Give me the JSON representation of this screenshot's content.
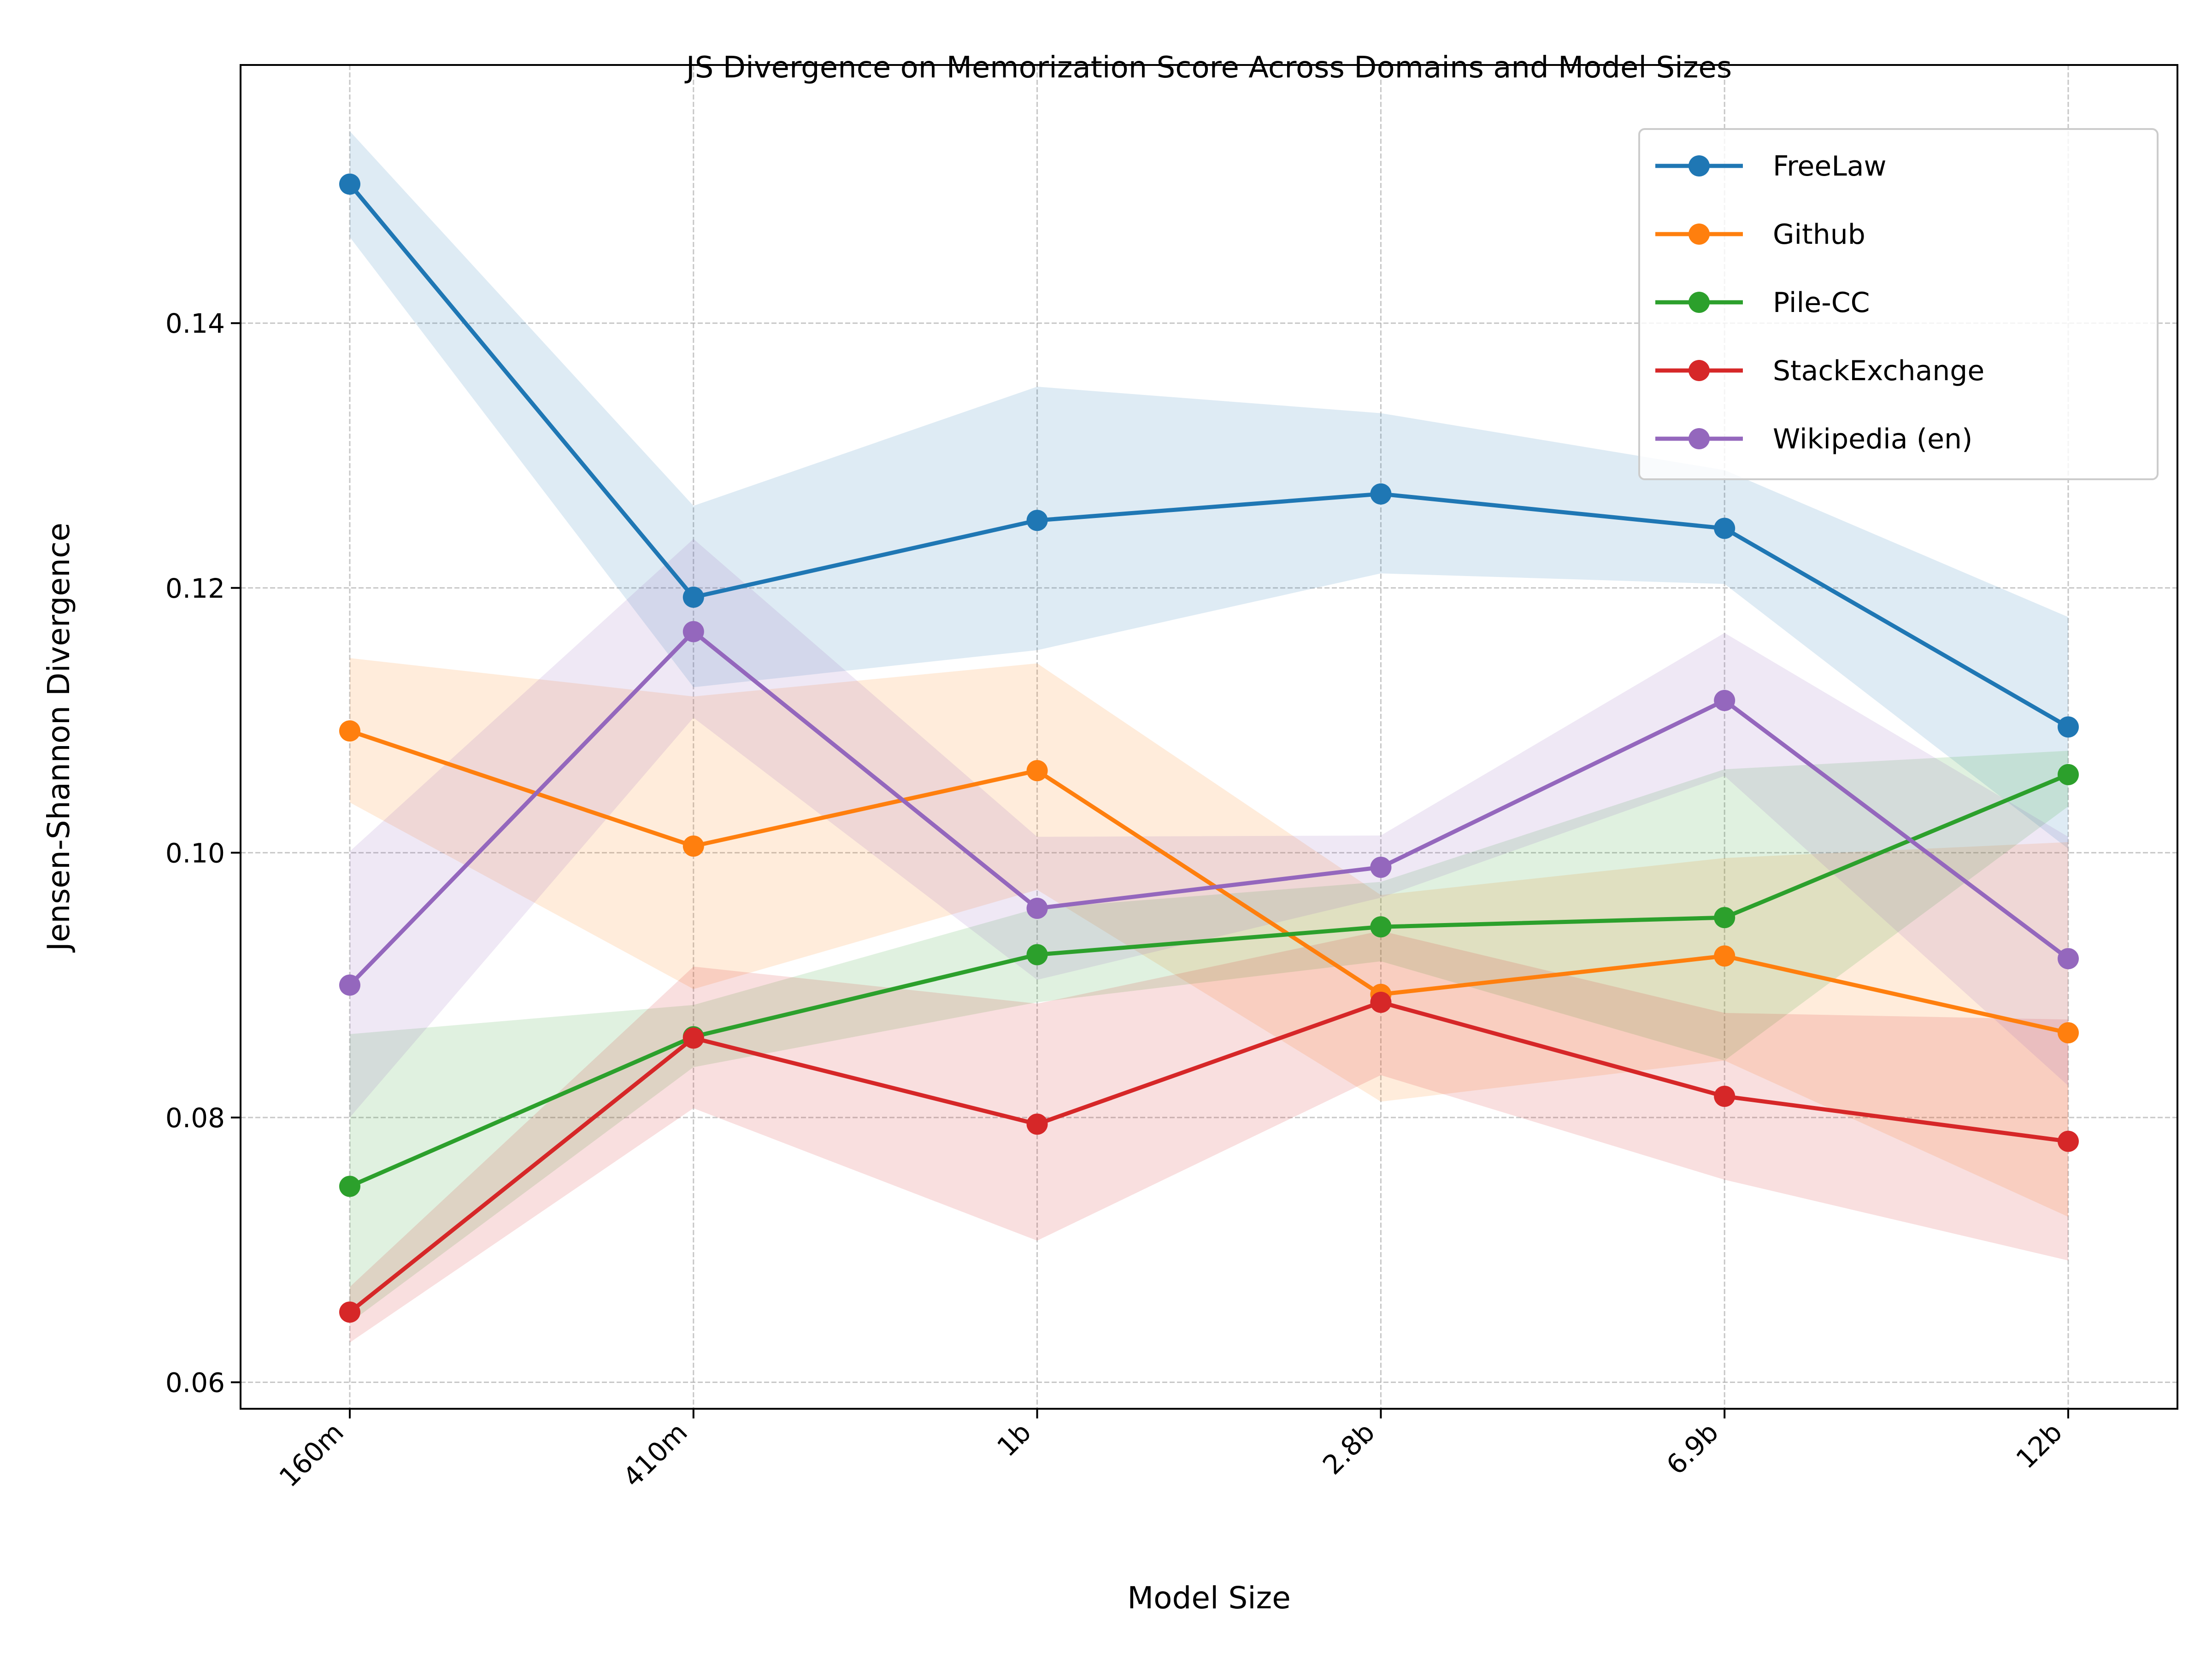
{
  "chart_data": {
    "type": "line",
    "title": "JS Divergence on Memorization Score Across Domains and Model Sizes",
    "xlabel": "Model Size",
    "ylabel": "Jensen-Shannon Divergence",
    "categories": [
      "160m",
      "410m",
      "1b",
      "2.8b",
      "6.9b",
      "12b"
    ],
    "ylim": [
      0.058,
      0.1595
    ],
    "yticks": [
      0.06,
      0.08,
      0.1,
      0.12,
      0.14
    ],
    "ytick_labels": [
      "0.06",
      "0.08",
      "0.10",
      "0.12",
      "0.14"
    ],
    "grid": true,
    "legend_position": "top-right",
    "series": [
      {
        "name": "FreeLaw",
        "color": "#1f77b4",
        "values": [
          0.1505,
          0.1193,
          0.1251,
          0.1271,
          0.1245,
          0.1095
        ],
        "lower": [
          0.1465,
          0.1125,
          0.1153,
          0.1211,
          0.1203,
          0.1003
        ],
        "upper": [
          0.1545,
          0.1262,
          0.1352,
          0.1332,
          0.1289,
          0.1178
        ]
      },
      {
        "name": "Github",
        "color": "#ff7f0e",
        "values": [
          0.1092,
          0.1005,
          0.1062,
          0.0893,
          0.0922,
          0.0864
        ],
        "lower": [
          0.1038,
          0.0897,
          0.0972,
          0.0812,
          0.0843,
          0.0725
        ],
        "upper": [
          0.1147,
          0.1118,
          0.1143,
          0.0968,
          0.0996,
          0.1008
        ]
      },
      {
        "name": "Pile-CC",
        "color": "#2ca02c",
        "values": [
          0.0748,
          0.0861,
          0.0923,
          0.0944,
          0.0951,
          0.1059
        ],
        "lower": [
          0.0645,
          0.0838,
          0.0887,
          0.0918,
          0.0843,
          0.1035
        ],
        "upper": [
          0.0863,
          0.0885,
          0.0958,
          0.0978,
          0.1063,
          0.1077
        ]
      },
      {
        "name": "StackExchange",
        "color": "#d62728",
        "values": [
          0.0653,
          0.086,
          0.0795,
          0.0887,
          0.0816,
          0.0782
        ],
        "lower": [
          0.063,
          0.0807,
          0.0707,
          0.0832,
          0.0753,
          0.0692
        ],
        "upper": [
          0.0672,
          0.0914,
          0.0886,
          0.0941,
          0.0879,
          0.0874
        ]
      },
      {
        "name": "Wikipedia (en)",
        "color": "#9467bd",
        "values": [
          0.09,
          0.1167,
          0.0958,
          0.0989,
          0.1115,
          0.092
        ],
        "lower": [
          0.08,
          0.1102,
          0.0904,
          0.0966,
          0.1058,
          0.0824
        ],
        "upper": [
          0.1001,
          0.1237,
          0.1012,
          0.1013,
          0.1166,
          0.1012
        ]
      }
    ]
  }
}
